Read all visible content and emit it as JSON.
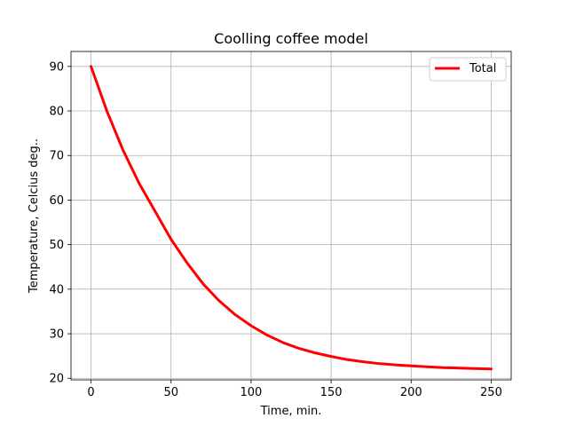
{
  "chart_data": {
    "type": "line",
    "title": "Coolling coffee model",
    "xlabel": "Time, min.",
    "ylabel": "Temperature, Celcius deg..",
    "xlim": [
      -12.5,
      262.5
    ],
    "ylim": [
      19.65,
      93.35
    ],
    "xticks": [
      0,
      50,
      100,
      150,
      200,
      250
    ],
    "yticks": [
      20,
      30,
      40,
      50,
      60,
      70,
      80,
      90
    ],
    "grid": true,
    "legend_position": "top-right",
    "series": [
      {
        "name": "Total",
        "color": "#ff0000",
        "x": [
          0,
          10,
          20,
          30,
          40,
          50,
          60,
          70,
          80,
          90,
          100,
          110,
          120,
          130,
          140,
          150,
          160,
          170,
          180,
          190,
          200,
          210,
          220,
          230,
          240,
          250
        ],
        "y": [
          90,
          79.9,
          71.2,
          63.8,
          57.5,
          51.2,
          45.9,
          41.2,
          37.4,
          34.3,
          31.8,
          29.7,
          28.0,
          26.7,
          25.7,
          24.9,
          24.2,
          23.7,
          23.3,
          23.0,
          22.8,
          22.6,
          22.4,
          22.3,
          22.2,
          22.1
        ]
      }
    ]
  }
}
